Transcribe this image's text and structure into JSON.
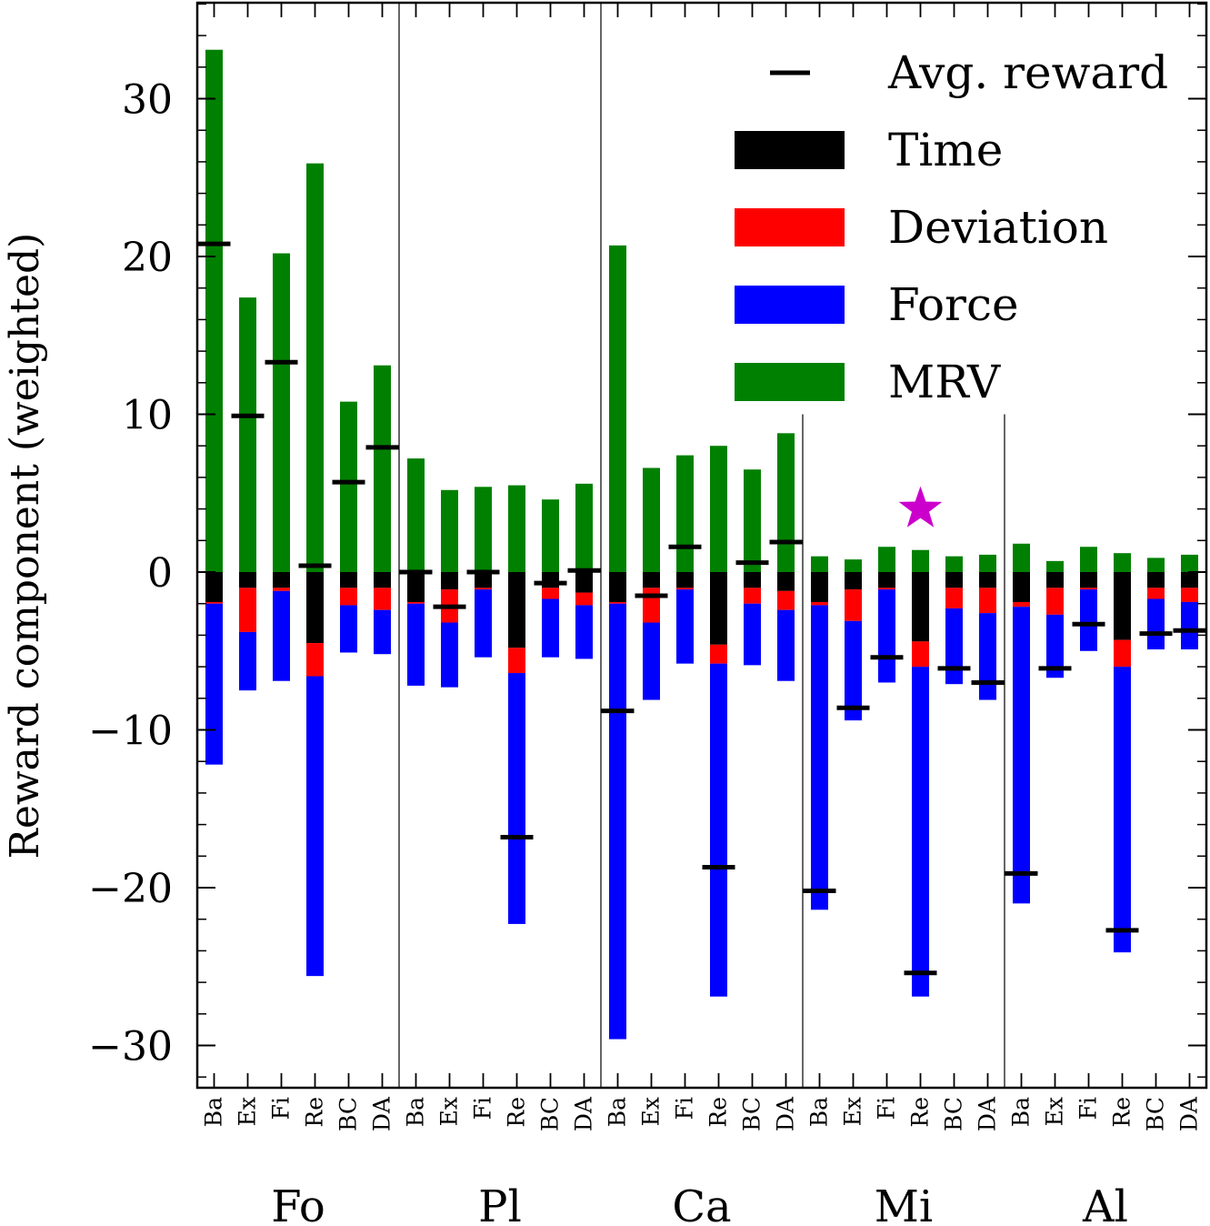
{
  "chart_data": {
    "type": "bar",
    "stacked": true,
    "ylabel": "Reward component (weighted)",
    "ylim": [
      -32.5,
      36
    ],
    "yticks": [
      -30,
      -20,
      -10,
      0,
      10,
      20,
      30
    ],
    "ytick_labels": [
      "−30",
      "−20",
      "−10",
      "0",
      "10",
      "20",
      "30"
    ],
    "grid": false,
    "legend_position": "top-right",
    "groups": [
      "Fo",
      "Pl",
      "Ca",
      "Mi",
      "Al"
    ],
    "methods": [
      "Ba",
      "Ex",
      "Fi",
      "Re",
      "BC",
      "DA"
    ],
    "legend": [
      {
        "key": "avg",
        "label": "Avg. reward",
        "color": "#000000",
        "marker": "dash"
      },
      {
        "key": "time",
        "label": "Time",
        "color": "#000000"
      },
      {
        "key": "deviation",
        "label": "Deviation",
        "color": "#ff0000"
      },
      {
        "key": "force",
        "label": "Force",
        "color": "#0000ff"
      },
      {
        "key": "mrv",
        "label": "MRV",
        "color": "#008000"
      }
    ],
    "bars": [
      {
        "group": "Fo",
        "method": "Ba",
        "mrv": 33.1,
        "time": 1.9,
        "deviation": 0.1,
        "force": 10.2,
        "avg": 20.8
      },
      {
        "group": "Fo",
        "method": "Ex",
        "mrv": 17.4,
        "time": 1.0,
        "deviation": 2.8,
        "force": 3.7,
        "avg": 9.9
      },
      {
        "group": "Fo",
        "method": "Fi",
        "mrv": 20.2,
        "time": 1.0,
        "deviation": 0.2,
        "force": 5.7,
        "avg": 13.3
      },
      {
        "group": "Fo",
        "method": "Re",
        "mrv": 25.9,
        "time": 4.5,
        "deviation": 2.1,
        "force": 19.0,
        "avg": 0.4
      },
      {
        "group": "Fo",
        "method": "BC",
        "mrv": 10.8,
        "time": 1.0,
        "deviation": 1.1,
        "force": 3.0,
        "avg": 5.7
      },
      {
        "group": "Fo",
        "method": "DA",
        "mrv": 13.1,
        "time": 1.0,
        "deviation": 1.4,
        "force": 2.8,
        "avg": 7.9
      },
      {
        "group": "Pl",
        "method": "Ba",
        "mrv": 7.2,
        "time": 1.9,
        "deviation": 0.1,
        "force": 5.2,
        "avg": 0.0
      },
      {
        "group": "Pl",
        "method": "Ex",
        "mrv": 5.2,
        "time": 1.1,
        "deviation": 2.1,
        "force": 4.1,
        "avg": -2.2
      },
      {
        "group": "Pl",
        "method": "Fi",
        "mrv": 5.4,
        "time": 1.0,
        "deviation": 0.1,
        "force": 4.3,
        "avg": 0.0
      },
      {
        "group": "Pl",
        "method": "Re",
        "mrv": 5.5,
        "time": 4.8,
        "deviation": 1.6,
        "force": 15.9,
        "avg": -16.8
      },
      {
        "group": "Pl",
        "method": "BC",
        "mrv": 4.6,
        "time": 1.0,
        "deviation": 0.7,
        "force": 3.7,
        "avg": -0.7
      },
      {
        "group": "Pl",
        "method": "DA",
        "mrv": 5.6,
        "time": 1.3,
        "deviation": 0.8,
        "force": 3.4,
        "avg": 0.1
      },
      {
        "group": "Ca",
        "method": "Ba",
        "mrv": 20.7,
        "time": 1.9,
        "deviation": 0.1,
        "force": 27.6,
        "avg": -8.8
      },
      {
        "group": "Ca",
        "method": "Ex",
        "mrv": 6.6,
        "time": 1.0,
        "deviation": 2.2,
        "force": 4.9,
        "avg": -1.5
      },
      {
        "group": "Ca",
        "method": "Fi",
        "mrv": 7.4,
        "time": 1.0,
        "deviation": 0.1,
        "force": 4.7,
        "avg": 1.6
      },
      {
        "group": "Ca",
        "method": "Re",
        "mrv": 8.0,
        "time": 4.6,
        "deviation": 1.2,
        "force": 21.1,
        "avg": -18.7
      },
      {
        "group": "Ca",
        "method": "BC",
        "mrv": 6.5,
        "time": 1.0,
        "deviation": 1.0,
        "force": 3.9,
        "avg": 0.6
      },
      {
        "group": "Ca",
        "method": "DA",
        "mrv": 8.8,
        "time": 1.2,
        "deviation": 1.2,
        "force": 4.5,
        "avg": 1.9
      },
      {
        "group": "Mi",
        "method": "Ba",
        "mrv": 1.0,
        "time": 1.9,
        "deviation": 0.2,
        "force": 19.3,
        "avg": -20.2
      },
      {
        "group": "Mi",
        "method": "Ex",
        "mrv": 0.8,
        "time": 1.1,
        "deviation": 2.0,
        "force": 6.3,
        "avg": -8.6
      },
      {
        "group": "Mi",
        "method": "Fi",
        "mrv": 1.6,
        "time": 1.0,
        "deviation": 0.1,
        "force": 5.9,
        "avg": -5.4
      },
      {
        "group": "Mi",
        "method": "Re",
        "mrv": 1.4,
        "time": 4.4,
        "deviation": 1.6,
        "force": 20.9,
        "avg": -25.4
      },
      {
        "group": "Mi",
        "method": "BC",
        "mrv": 1.0,
        "time": 1.0,
        "deviation": 1.3,
        "force": 4.8,
        "avg": -6.1
      },
      {
        "group": "Mi",
        "method": "DA",
        "mrv": 1.1,
        "time": 1.0,
        "deviation": 1.6,
        "force": 5.5,
        "avg": -7.0
      },
      {
        "group": "Al",
        "method": "Ba",
        "mrv": 1.8,
        "time": 1.9,
        "deviation": 0.3,
        "force": 18.8,
        "avg": -19.1
      },
      {
        "group": "Al",
        "method": "Ex",
        "mrv": 0.7,
        "time": 1.0,
        "deviation": 1.7,
        "force": 4.0,
        "avg": -6.1
      },
      {
        "group": "Al",
        "method": "Fi",
        "mrv": 1.6,
        "time": 1.0,
        "deviation": 0.1,
        "force": 3.9,
        "avg": -3.3
      },
      {
        "group": "Al",
        "method": "Re",
        "mrv": 1.2,
        "time": 4.3,
        "deviation": 1.7,
        "force": 18.1,
        "avg": -22.7
      },
      {
        "group": "Al",
        "method": "BC",
        "mrv": 0.9,
        "time": 1.0,
        "deviation": 0.7,
        "force": 3.2,
        "avg": -3.9
      },
      {
        "group": "Al",
        "method": "DA",
        "mrv": 1.1,
        "time": 1.0,
        "deviation": 0.9,
        "force": 3.0,
        "avg": -3.7
      }
    ],
    "annotations": [
      {
        "type": "star",
        "group": "Mi",
        "method": "Re",
        "y": 4.0,
        "color": "#cc00cc"
      }
    ]
  }
}
